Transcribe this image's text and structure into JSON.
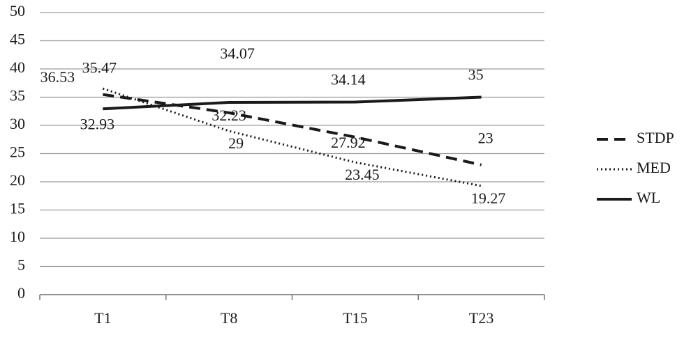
{
  "chart_data": {
    "type": "line",
    "categories": [
      "T1",
      "T8",
      "T15",
      "T23"
    ],
    "series": [
      {
        "name": "STDP",
        "color": "#1a1a1a",
        "style": "dashed",
        "values": [
          35.47,
          32.23,
          27.92,
          23
        ]
      },
      {
        "name": "MED",
        "color": "#1a1a1a",
        "style": "dotted",
        "values": [
          36.53,
          29,
          23.45,
          19.27
        ]
      },
      {
        "name": "WL",
        "color": "#1a1a1a",
        "style": "solid",
        "values": [
          32.93,
          34.07,
          34.14,
          35
        ]
      }
    ],
    "ylim": [
      0,
      50
    ],
    "yticks": [
      0,
      5,
      10,
      15,
      20,
      25,
      30,
      35,
      40,
      45,
      50
    ],
    "grid": true,
    "legend": "right"
  }
}
